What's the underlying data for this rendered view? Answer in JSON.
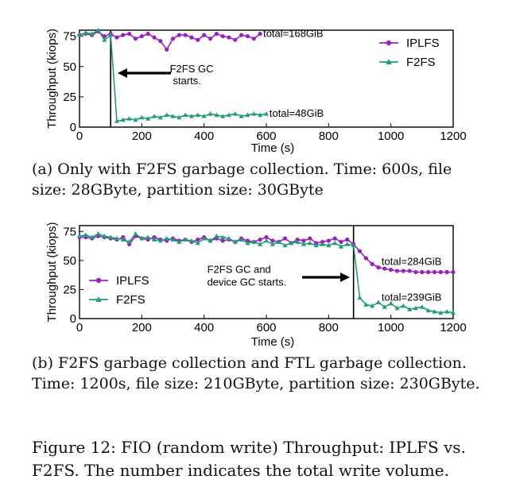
{
  "chart_data": [
    {
      "type": "line",
      "id": "a",
      "xlabel": "Time (s)",
      "ylabel": "Throughput (kiops)",
      "xlim": [
        0,
        1200
      ],
      "ylim": [
        0,
        80
      ],
      "xticks": [
        "0",
        "200",
        "400",
        "600",
        "800",
        "1000",
        "1200"
      ],
      "yticks": [
        "0",
        "25",
        "50",
        "75"
      ],
      "legend_position": "top-right",
      "series": [
        {
          "name": "IPLFS",
          "color": "#9b1fbf",
          "marker": "circle",
          "x": [
            0,
            20,
            40,
            60,
            80,
            100,
            120,
            140,
            160,
            180,
            200,
            220,
            240,
            260,
            280,
            300,
            320,
            340,
            360,
            380,
            400,
            420,
            440,
            460,
            480,
            500,
            520,
            540,
            560,
            580
          ],
          "y": [
            76,
            77,
            76,
            79,
            75,
            77,
            74,
            76,
            77,
            73,
            75,
            77,
            74,
            71,
            64,
            73,
            76,
            76,
            74,
            72,
            76,
            73,
            77,
            75,
            74,
            72,
            76,
            75,
            73,
            77
          ]
        },
        {
          "name": "F2FS",
          "color": "#1f9e78",
          "marker": "triangle",
          "x": [
            0,
            20,
            40,
            60,
            80,
            100,
            120,
            140,
            160,
            180,
            200,
            220,
            240,
            260,
            280,
            300,
            320,
            340,
            360,
            380,
            400,
            420,
            440,
            460,
            480,
            500,
            520,
            540,
            560,
            580,
            600
          ],
          "y": [
            76,
            78,
            77,
            80,
            72,
            76,
            5,
            6,
            7,
            6,
            8,
            7,
            9,
            8,
            10,
            9,
            8,
            10,
            9,
            10,
            9,
            11,
            10,
            9,
            10,
            11,
            9,
            10,
            11,
            10,
            11
          ]
        }
      ],
      "vline_x": 100,
      "annotations": [
        {
          "text": "total=168GiB",
          "x": 590,
          "y": 77
        },
        {
          "text": "total=48GiB",
          "x": 610,
          "y": 11
        },
        {
          "text": "F2FS GC",
          "x": 290,
          "y": 48
        },
        {
          "text": "starts.",
          "x": 300,
          "y": 38
        }
      ]
    },
    {
      "type": "line",
      "id": "b",
      "xlabel": "Time (s)",
      "ylabel": "Throughput (kiops)",
      "xlim": [
        0,
        1200
      ],
      "ylim": [
        0,
        80
      ],
      "xticks": [
        "0",
        "200",
        "400",
        "600",
        "800",
        "1000",
        "1200"
      ],
      "yticks": [
        "0",
        "25",
        "50",
        "75"
      ],
      "legend_position": "center-left",
      "series": [
        {
          "name": "IPLFS",
          "color": "#9b1fbf",
          "marker": "circle",
          "x": [
            0,
            20,
            40,
            60,
            80,
            100,
            120,
            140,
            160,
            180,
            200,
            220,
            240,
            260,
            280,
            300,
            320,
            340,
            360,
            380,
            400,
            420,
            440,
            460,
            480,
            500,
            520,
            540,
            560,
            580,
            600,
            620,
            640,
            660,
            680,
            700,
            720,
            740,
            760,
            780,
            800,
            820,
            840,
            860,
            880,
            900,
            920,
            940,
            960,
            980,
            1000,
            1020,
            1040,
            1060,
            1080,
            1100,
            1120,
            1140,
            1160,
            1180,
            1200
          ],
          "y": [
            70,
            70,
            69,
            71,
            70,
            69,
            68,
            70,
            64,
            71,
            69,
            68,
            70,
            68,
            67,
            69,
            67,
            68,
            66,
            68,
            70,
            67,
            69,
            67,
            68,
            66,
            69,
            67,
            66,
            68,
            70,
            67,
            66,
            69,
            65,
            68,
            67,
            69,
            65,
            66,
            67,
            69,
            66,
            68,
            64,
            58,
            52,
            47,
            44,
            43,
            42,
            41,
            41,
            41,
            40,
            40,
            40,
            40,
            40,
            40,
            40
          ]
        },
        {
          "name": "F2FS",
          "color": "#1f9e78",
          "marker": "triangle",
          "x": [
            0,
            20,
            40,
            60,
            80,
            100,
            120,
            140,
            160,
            180,
            200,
            220,
            240,
            260,
            280,
            300,
            320,
            340,
            360,
            380,
            400,
            420,
            440,
            460,
            480,
            500,
            520,
            540,
            560,
            580,
            600,
            620,
            640,
            660,
            680,
            700,
            720,
            740,
            760,
            780,
            800,
            820,
            840,
            860,
            880,
            900,
            920,
            940,
            960,
            980,
            1000,
            1020,
            1040,
            1060,
            1080,
            1100,
            1120,
            1140,
            1160,
            1180,
            1200
          ],
          "y": [
            71,
            72,
            70,
            73,
            71,
            70,
            69,
            68,
            66,
            73,
            69,
            70,
            68,
            67,
            69,
            68,
            66,
            68,
            67,
            65,
            69,
            67,
            71,
            70,
            69,
            66,
            68,
            65,
            66,
            64,
            67,
            64,
            66,
            63,
            65,
            66,
            64,
            65,
            63,
            64,
            63,
            65,
            62,
            64,
            63,
            18,
            12,
            11,
            14,
            10,
            13,
            9,
            11,
            8,
            9,
            10,
            7,
            6,
            5,
            6,
            5
          ]
        }
      ],
      "vline_x": 880,
      "annotations": [
        {
          "text": "total=284GiB",
          "x": 970,
          "y": 49
        },
        {
          "text": "total=239GiB",
          "x": 970,
          "y": 18
        },
        {
          "text": "F2FS GC and",
          "x": 410,
          "y": 42
        },
        {
          "text": "device GC starts.",
          "x": 410,
          "y": 31
        }
      ]
    }
  ],
  "captions": {
    "a": "(a) Only with F2FS garbage collection. Time: 600s, file size: 28GByte, partition size: 30GByte",
    "b": "(b) F2FS garbage collection and FTL garbage collection. Time: 1200s, file size: 210GByte, partition size: 230GByte.",
    "figure": "Figure 12: FIO (random write) Throughput: IPLFS vs. F2FS. The number indicates the total write volume."
  }
}
